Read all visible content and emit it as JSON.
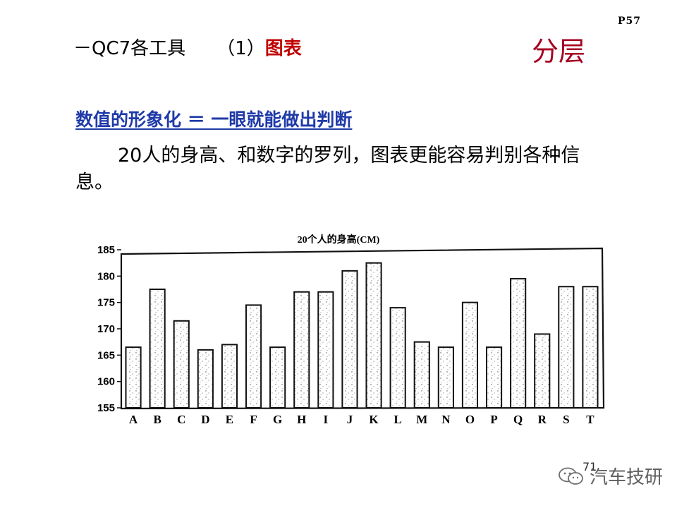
{
  "page_label": "P57",
  "header": {
    "prefix": "－QC7各工具",
    "index": "（1）",
    "tool_name": "图表"
  },
  "section_title": "分层",
  "subtitle": "数值的形象化 ＝ 一眼就能做出判断",
  "body_text": "20人的身高、和数字的罗列，图表更能容易判别各种信息。",
  "slide_number": "71",
  "watermark": {
    "icon": "wechat-icon",
    "text": "汽车技研"
  },
  "colors": {
    "section_title": "#a50021",
    "accent": "#c00000",
    "subtitle": "#1f3aa8"
  },
  "chart_data": {
    "type": "bar",
    "title": "20个人的身高(CM)",
    "xlabel": "",
    "ylabel": "",
    "categories": [
      "A",
      "B",
      "C",
      "D",
      "E",
      "F",
      "G",
      "H",
      "I",
      "J",
      "K",
      "L",
      "M",
      "N",
      "O",
      "P",
      "Q",
      "R",
      "S",
      "T"
    ],
    "values": [
      166.5,
      177.5,
      171.5,
      166,
      167,
      174.5,
      166.5,
      177,
      177,
      181,
      182.5,
      174,
      167.5,
      166.5,
      175,
      166.5,
      179.5,
      169,
      178,
      178
    ],
    "yticks": [
      155,
      160,
      165,
      170,
      175,
      180,
      185
    ],
    "ylim": [
      155,
      185
    ],
    "grid": false,
    "legend": "none"
  }
}
